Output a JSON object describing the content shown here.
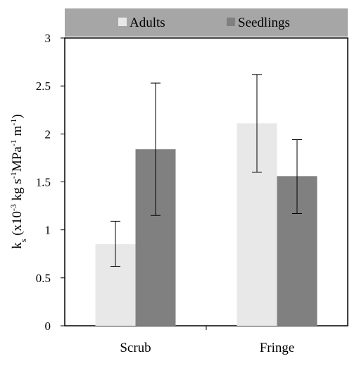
{
  "chart_data": {
    "type": "bar",
    "categories": [
      "Scrub",
      "Fringe"
    ],
    "series": [
      {
        "name": "Adults",
        "values": [
          0.85,
          2.11
        ],
        "error_low": [
          0.62,
          1.6
        ],
        "error_high": [
          1.09,
          2.62
        ],
        "color": "#e8e8e8"
      },
      {
        "name": "Seedlings",
        "values": [
          1.84,
          1.56
        ],
        "error_low": [
          1.15,
          1.17
        ],
        "error_high": [
          2.53,
          1.94
        ],
        "color": "#808080"
      }
    ],
    "ylim": [
      0,
      3
    ],
    "yticks": [
      "0",
      "0.5",
      "1",
      "1.5",
      "2",
      "2.5",
      "3"
    ],
    "ylabel": {
      "k": "k",
      "s": "s",
      "open": " (x10",
      "exp1": "-3",
      "kg": " kg s",
      "exp2": "-1",
      "mpa": "MPa",
      "exp3": "-1",
      "m": " m",
      "exp4": "-1",
      "close": ")"
    },
    "legend": {
      "position": "top",
      "background": "#a6a6a6"
    },
    "grid": false
  }
}
